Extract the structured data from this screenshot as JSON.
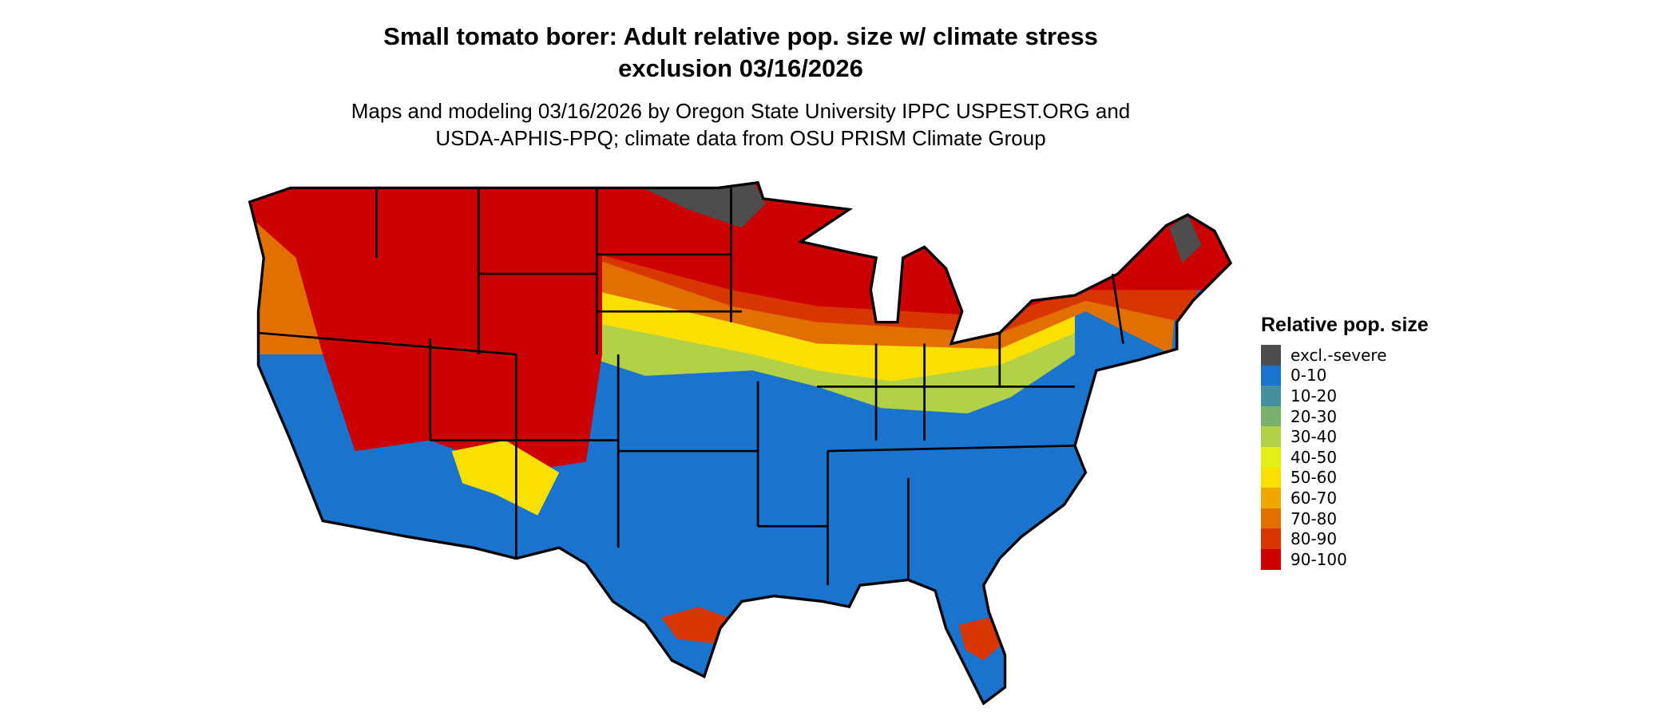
{
  "title": {
    "line1": "Small tomato borer: Adult relative pop. size w/ climate stress",
    "line2": "exclusion 03/16/2026"
  },
  "subtitle": {
    "line1": "Maps and modeling 03/16/2026 by Oregon State University IPPC USPEST.ORG and",
    "line2": "USDA-APHIS-PPQ; climate data from OSU PRISM Climate Group"
  },
  "legend": {
    "title": "Relative pop. size",
    "items": [
      {
        "label": "excl.-severe",
        "color": "#4d4d4d"
      },
      {
        "label": "0-10",
        "color": "#1a73cc"
      },
      {
        "label": "10-20",
        "color": "#468f9c"
      },
      {
        "label": "20-30",
        "color": "#7bb06e"
      },
      {
        "label": "30-40",
        "color": "#b2d147"
      },
      {
        "label": "40-50",
        "color": "#e3ee16"
      },
      {
        "label": "50-60",
        "color": "#f9e000"
      },
      {
        "label": "60-70",
        "color": "#eea800"
      },
      {
        "label": "70-80",
        "color": "#e27000"
      },
      {
        "label": "80-90",
        "color": "#d83600"
      },
      {
        "label": "90-100",
        "color": "#cc0000"
      }
    ]
  }
}
